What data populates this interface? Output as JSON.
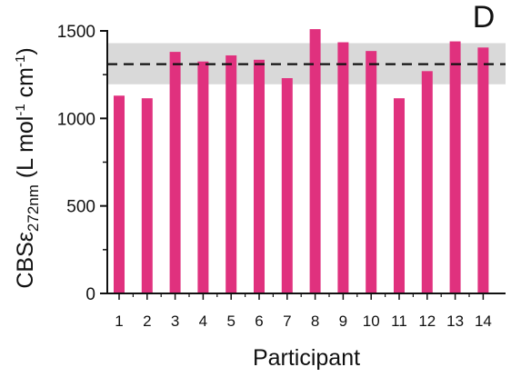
{
  "chart_data": {
    "type": "bar",
    "panel_label": "D",
    "xlabel": "Participant",
    "ylabel": {
      "main": "CBS",
      "epsilon": "ε",
      "subscript": "272nm",
      "units_prefix": " (L mol",
      "units_sup1": "-1",
      "units_mid": " cm",
      "units_sup2": "-1",
      "units_suffix": ")"
    },
    "categories": [
      "1",
      "2",
      "3",
      "4",
      "5",
      "6",
      "7",
      "8",
      "9",
      "10",
      "11",
      "12",
      "13",
      "14"
    ],
    "values": [
      1130,
      1115,
      1380,
      1325,
      1360,
      1335,
      1230,
      1510,
      1435,
      1385,
      1115,
      1270,
      1440,
      1405
    ],
    "ylim": [
      0,
      1500
    ],
    "yticks": [
      0,
      500,
      1000,
      1500
    ],
    "mean_line": 1310,
    "band": [
      1195,
      1430
    ],
    "bar_color": "#e0317e",
    "band_color": "#d9d9d9",
    "grid": false
  }
}
